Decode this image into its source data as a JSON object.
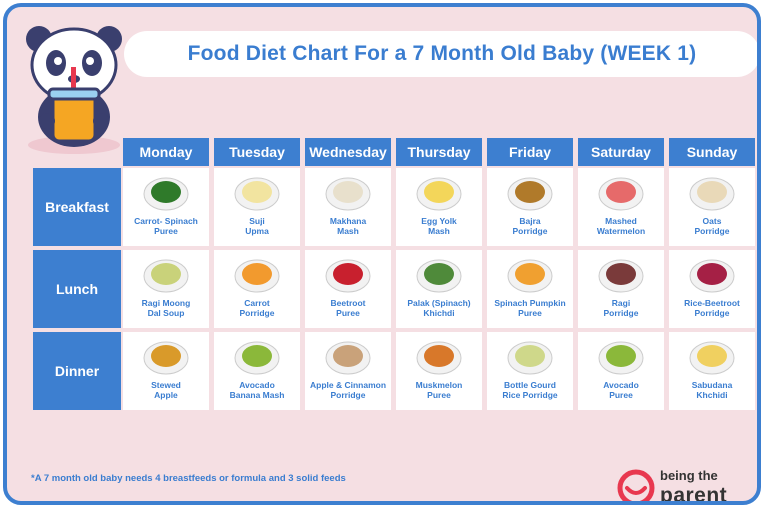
{
  "title": "Food Diet Chart For a 7 Month Old Baby (WEEK 1)",
  "days": [
    "Monday",
    "Tuesday",
    "Wednesday",
    "Thursday",
    "Friday",
    "Saturday",
    "Sunday"
  ],
  "meals": [
    "Breakfast",
    "Lunch",
    "Dinner"
  ],
  "cells": [
    [
      "Carrot- Spinach\nPuree",
      "Suji\nUpma",
      "Makhana\nMash",
      "Egg Yolk\nMash",
      "Bajra\nPorridge",
      "Mashed\nWatermelon",
      "Oats\nPorridge"
    ],
    [
      "Ragi Moong\nDal Soup",
      "Carrot\nPorridge",
      "Beetroot\nPuree",
      "Palak (Spinach)\nKhichdi",
      "Spinach Pumpkin\nPuree",
      "Ragi\nPorridge",
      "Rice-Beetroot\nPorridge"
    ],
    [
      "Stewed\nApple",
      "Avocado\nBanana Mash",
      "Apple & Cinnamon\nPorridge",
      "Muskmelon\nPuree",
      "Bottle Gourd\nRice Porridge",
      "Avocado\nPuree",
      "Sabudana\nKhchidi"
    ]
  ],
  "food_colors": [
    [
      "#2f7a2a",
      "#f2e4a0",
      "#e8e0cc",
      "#f3d65a",
      "#b07a2a",
      "#e66a6a",
      "#e9d9b8"
    ],
    [
      "#c9d27a",
      "#f29a2e",
      "#c8202e",
      "#4f8a3a",
      "#f0a030",
      "#7a3a3a",
      "#a52045"
    ],
    [
      "#d99a2a",
      "#8bb83a",
      "#c9a27a",
      "#d8782a",
      "#cfd88a",
      "#8bb83a",
      "#f0d060"
    ]
  ],
  "footnote": "*A 7 month old baby needs 4 breastfeeds or formula and 3 solid feeds",
  "logo": {
    "top": "being the",
    "bottom": "parent"
  },
  "colors": {
    "accent": "#3d7fd0",
    "background": "#f5dfe3",
    "logo_red": "#e8384f"
  }
}
